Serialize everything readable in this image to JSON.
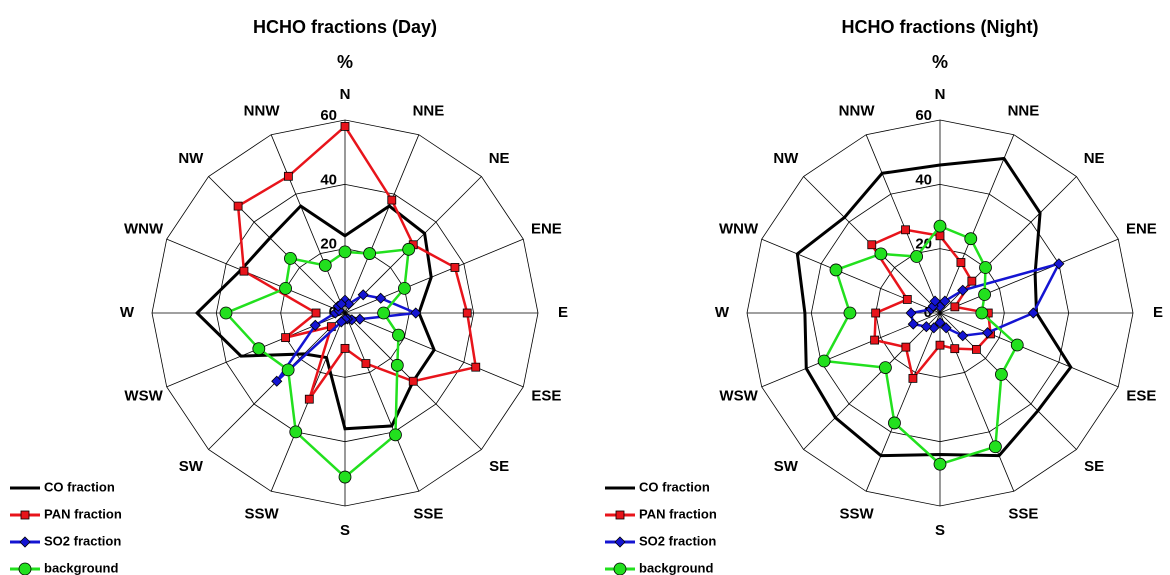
{
  "chart_data": [
    {
      "type": "radar",
      "title": "HCHO fractions (Day)",
      "subtitle": "%",
      "categories": [
        "N",
        "NNE",
        "NE",
        "ENE",
        "E",
        "ESE",
        "SE",
        "SSE",
        "S",
        "SSW",
        "SW",
        "WSW",
        "W",
        "WNW",
        "NW",
        "NNW"
      ],
      "ylim": [
        0,
        60
      ],
      "yticks": [
        0,
        20,
        40,
        60
      ],
      "grid": true,
      "legend": "lower left",
      "series": [
        {
          "name": "CO fraction",
          "color": "#000000",
          "marker": "none",
          "values": [
            24,
            36,
            35,
            29,
            23,
            30,
            30,
            38,
            36,
            15,
            18,
            35,
            46,
            35,
            33,
            36
          ]
        },
        {
          "name": "PAN fraction",
          "color": "#e8141b",
          "marker": "square",
          "values": [
            58,
            38,
            30,
            37,
            38,
            44,
            30,
            17,
            11,
            29,
            6,
            20,
            9,
            34,
            47,
            46
          ]
        },
        {
          "name": "SO2 fraction",
          "color": "#1414d2",
          "marker": "diamond",
          "values": [
            4,
            3,
            8,
            12,
            22,
            5,
            3,
            2,
            2,
            3,
            30,
            10,
            3,
            2,
            3,
            3
          ]
        },
        {
          "name": "background",
          "color": "#22e01e",
          "marker": "circle",
          "values": [
            19,
            20,
            28,
            20,
            12,
            18,
            23,
            41,
            51,
            40,
            25,
            29,
            37,
            20,
            24,
            16
          ]
        }
      ]
    },
    {
      "type": "radar",
      "title": "HCHO fractions (Night)",
      "subtitle": "%",
      "categories": [
        "N",
        "NNE",
        "NE",
        "ENE",
        "E",
        "ESE",
        "SE",
        "SSE",
        "S",
        "SSW",
        "SW",
        "WSW",
        "W",
        "WNW",
        "NW",
        "NNW"
      ],
      "ylim": [
        0,
        60
      ],
      "yticks": [
        0,
        20,
        40,
        60
      ],
      "grid": true,
      "legend": "lower left",
      "series": [
        {
          "name": "CO fraction",
          "color": "#000000",
          "marker": "none",
          "values": [
            46,
            52,
            44,
            32,
            30,
            44,
            43,
            48,
            44,
            48,
            46,
            45,
            42,
            48,
            42,
            47
          ]
        },
        {
          "name": "PAN fraction",
          "color": "#e8141b",
          "marker": "square",
          "values": [
            24,
            17,
            14,
            5,
            15,
            17,
            16,
            12,
            10,
            22,
            15,
            22,
            20,
            11,
            30,
            28
          ]
        },
        {
          "name": "SO2 fraction",
          "color": "#1414d2",
          "marker": "diamond",
          "values": [
            2,
            4,
            10,
            40,
            29,
            16,
            10,
            5,
            3,
            5,
            6,
            9,
            9,
            3,
            3,
            4
          ]
        },
        {
          "name": "background",
          "color": "#22e01e",
          "marker": "circle",
          "values": [
            27,
            25,
            20,
            15,
            13,
            26,
            27,
            45,
            47,
            37,
            24,
            39,
            28,
            35,
            26,
            19
          ]
        }
      ]
    }
  ]
}
